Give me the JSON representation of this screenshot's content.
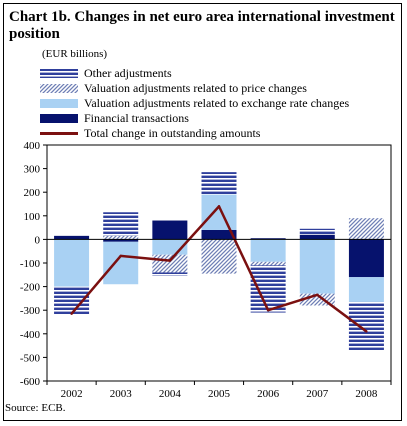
{
  "title": "Chart 1b. Changes in net euro area international investment position",
  "unit": "(EUR billions)",
  "source": "Source: ECB.",
  "colors": {
    "other": "#2f3f9c",
    "price": "#6f7fb5",
    "exchange": "#a9d1f3",
    "financial": "#06126d",
    "total": "#7b1010"
  },
  "chart_data": {
    "type": "bar",
    "stacked": true,
    "categories": [
      "2002",
      "2003",
      "2004",
      "2005",
      "2006",
      "2007",
      "2008"
    ],
    "ylim": [
      -600,
      400
    ],
    "yticks": [
      "400",
      "300",
      "200",
      "100",
      "0",
      "-100",
      "-200",
      "-300",
      "-400",
      "-500",
      "-600"
    ],
    "series": [
      {
        "name": "Other adjustments",
        "key": "other",
        "values": [
          -120,
          100,
          -15,
          95,
          -200,
          25,
          -210
        ]
      },
      {
        "name": "Valuation adjustments related to price changes",
        "key": "price",
        "values": [
          0,
          15,
          -75,
          -145,
          -15,
          -50,
          90
        ]
      },
      {
        "name": "Valuation adjustments related to exchange rate changes",
        "key": "exchange",
        "values": [
          -200,
          -180,
          -65,
          150,
          -95,
          -230,
          -105
        ]
      },
      {
        "name": "Financial transactions",
        "key": "financial",
        "values": [
          15,
          -10,
          80,
          40,
          5,
          20,
          -160
        ]
      },
      {
        "name": "Total change in outstanding amounts",
        "key": "total",
        "kind": "line",
        "values": [
          -315,
          -70,
          -90,
          140,
          -300,
          -235,
          -390
        ]
      }
    ]
  }
}
